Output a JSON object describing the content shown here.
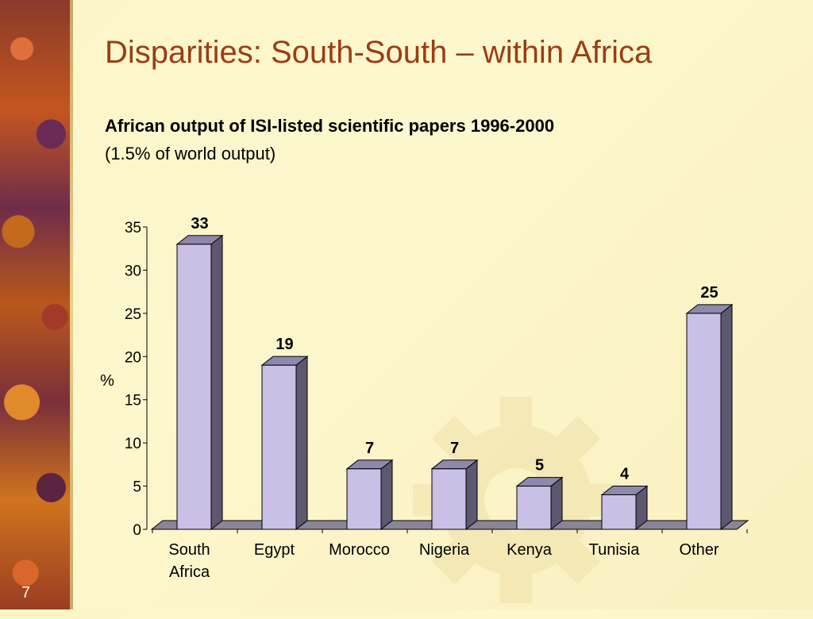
{
  "slide": {
    "title": "Disparities: South-South – within Africa",
    "subtitle": "African output of ISI-listed scientific papers 1996-2000",
    "subtitle_note": "(1.5% of world output)",
    "slide_number": "7"
  },
  "colors": {
    "title": "#9b3d14",
    "bar_front": "#c9c0e6",
    "bar_side": "#5d5870",
    "bar_top": "#8f88ad",
    "floor": "#8a8596"
  },
  "chart_data": {
    "type": "bar",
    "style": "3d",
    "categories": [
      [
        "South",
        "Africa"
      ],
      [
        "Egypt"
      ],
      [
        "Morocco"
      ],
      [
        "Nigeria"
      ],
      [
        "Kenya"
      ],
      [
        "Tunisia"
      ],
      [
        "Other"
      ]
    ],
    "values": [
      33,
      19,
      7,
      7,
      5,
      4,
      25
    ],
    "data_labels": [
      "33",
      "19",
      "7",
      "7",
      "5",
      "4",
      "25"
    ],
    "title": "",
    "xlabel": "",
    "ylabel": "%",
    "ylim": [
      0,
      35
    ],
    "yticks": [
      0,
      5,
      10,
      15,
      20,
      25,
      30,
      35
    ],
    "grid": false,
    "legend": "none"
  }
}
